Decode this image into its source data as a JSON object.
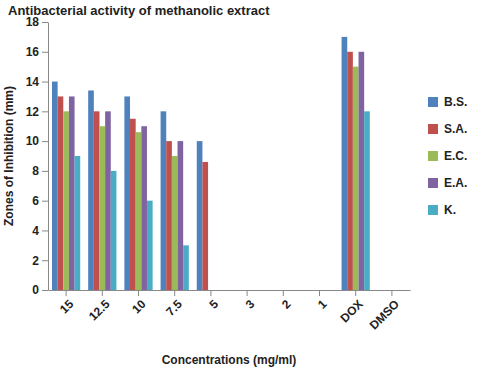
{
  "chart_data": {
    "type": "bar",
    "title": "Antibacterial activity of methanolic extract",
    "x_label": "Concentrations (mg/ml)",
    "y_label": "Zones of Inhibition (mm)",
    "categories": [
      "15",
      "12.5",
      "10",
      "7.5",
      "5",
      "3",
      "2",
      "1",
      "DOX",
      "DMSO"
    ],
    "series": [
      {
        "name": "B.S.",
        "color": "#4f81bd",
        "values": [
          14,
          13.4,
          13,
          12,
          10,
          0,
          0,
          0,
          17,
          0
        ]
      },
      {
        "name": "S.A.",
        "color": "#c0504d",
        "values": [
          13,
          12,
          11.5,
          10,
          8.6,
          0,
          0,
          0,
          16,
          0
        ]
      },
      {
        "name": "E.C.",
        "color": "#9bbb59",
        "values": [
          12,
          11,
          10.6,
          9,
          0,
          0,
          0,
          0,
          15,
          0
        ]
      },
      {
        "name": "E.A.",
        "color": "#8064a2",
        "values": [
          13,
          12,
          11,
          10,
          0,
          0,
          0,
          0,
          16,
          0
        ]
      },
      {
        "name": "K.",
        "color": "#4bacc6",
        "values": [
          9,
          8,
          6,
          3,
          0,
          0,
          0,
          0,
          12,
          0
        ]
      }
    ],
    "ylim": [
      0,
      18
    ],
    "yticks": [
      0,
      2,
      4,
      6,
      8,
      10,
      12,
      14,
      16,
      18
    ],
    "grid": false,
    "legend": "right"
  }
}
